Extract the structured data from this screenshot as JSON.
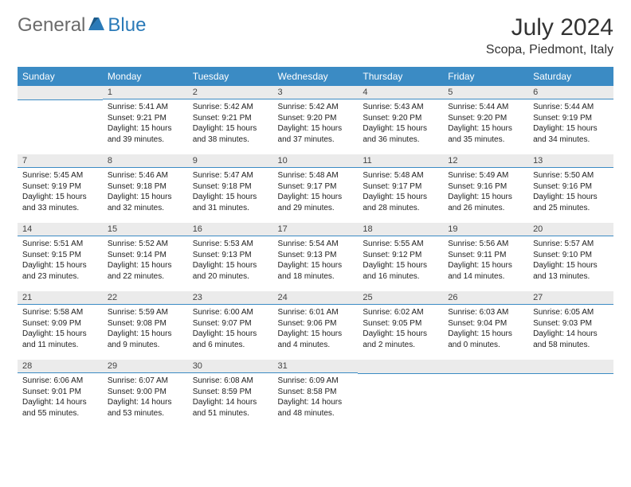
{
  "logo": {
    "text_general": "General",
    "text_blue": "Blue"
  },
  "title": "July 2024",
  "location": "Scopa, Piedmont, Italy",
  "colors": {
    "header_bg": "#3b8bc4",
    "header_text": "#ffffff",
    "day_header_bg": "#ebebeb",
    "day_border": "#3b8bc4",
    "logo_blue": "#2a7ab8",
    "logo_gray": "#6b6b6b"
  },
  "day_names": [
    "Sunday",
    "Monday",
    "Tuesday",
    "Wednesday",
    "Thursday",
    "Friday",
    "Saturday"
  ],
  "weeks": [
    [
      {
        "day": "",
        "sunrise": "",
        "sunset": "",
        "daylight": ""
      },
      {
        "day": "1",
        "sunrise": "Sunrise: 5:41 AM",
        "sunset": "Sunset: 9:21 PM",
        "daylight": "Daylight: 15 hours and 39 minutes."
      },
      {
        "day": "2",
        "sunrise": "Sunrise: 5:42 AM",
        "sunset": "Sunset: 9:21 PM",
        "daylight": "Daylight: 15 hours and 38 minutes."
      },
      {
        "day": "3",
        "sunrise": "Sunrise: 5:42 AM",
        "sunset": "Sunset: 9:20 PM",
        "daylight": "Daylight: 15 hours and 37 minutes."
      },
      {
        "day": "4",
        "sunrise": "Sunrise: 5:43 AM",
        "sunset": "Sunset: 9:20 PM",
        "daylight": "Daylight: 15 hours and 36 minutes."
      },
      {
        "day": "5",
        "sunrise": "Sunrise: 5:44 AM",
        "sunset": "Sunset: 9:20 PM",
        "daylight": "Daylight: 15 hours and 35 minutes."
      },
      {
        "day": "6",
        "sunrise": "Sunrise: 5:44 AM",
        "sunset": "Sunset: 9:19 PM",
        "daylight": "Daylight: 15 hours and 34 minutes."
      }
    ],
    [
      {
        "day": "7",
        "sunrise": "Sunrise: 5:45 AM",
        "sunset": "Sunset: 9:19 PM",
        "daylight": "Daylight: 15 hours and 33 minutes."
      },
      {
        "day": "8",
        "sunrise": "Sunrise: 5:46 AM",
        "sunset": "Sunset: 9:18 PM",
        "daylight": "Daylight: 15 hours and 32 minutes."
      },
      {
        "day": "9",
        "sunrise": "Sunrise: 5:47 AM",
        "sunset": "Sunset: 9:18 PM",
        "daylight": "Daylight: 15 hours and 31 minutes."
      },
      {
        "day": "10",
        "sunrise": "Sunrise: 5:48 AM",
        "sunset": "Sunset: 9:17 PM",
        "daylight": "Daylight: 15 hours and 29 minutes."
      },
      {
        "day": "11",
        "sunrise": "Sunrise: 5:48 AM",
        "sunset": "Sunset: 9:17 PM",
        "daylight": "Daylight: 15 hours and 28 minutes."
      },
      {
        "day": "12",
        "sunrise": "Sunrise: 5:49 AM",
        "sunset": "Sunset: 9:16 PM",
        "daylight": "Daylight: 15 hours and 26 minutes."
      },
      {
        "day": "13",
        "sunrise": "Sunrise: 5:50 AM",
        "sunset": "Sunset: 9:16 PM",
        "daylight": "Daylight: 15 hours and 25 minutes."
      }
    ],
    [
      {
        "day": "14",
        "sunrise": "Sunrise: 5:51 AM",
        "sunset": "Sunset: 9:15 PM",
        "daylight": "Daylight: 15 hours and 23 minutes."
      },
      {
        "day": "15",
        "sunrise": "Sunrise: 5:52 AM",
        "sunset": "Sunset: 9:14 PM",
        "daylight": "Daylight: 15 hours and 22 minutes."
      },
      {
        "day": "16",
        "sunrise": "Sunrise: 5:53 AM",
        "sunset": "Sunset: 9:13 PM",
        "daylight": "Daylight: 15 hours and 20 minutes."
      },
      {
        "day": "17",
        "sunrise": "Sunrise: 5:54 AM",
        "sunset": "Sunset: 9:13 PM",
        "daylight": "Daylight: 15 hours and 18 minutes."
      },
      {
        "day": "18",
        "sunrise": "Sunrise: 5:55 AM",
        "sunset": "Sunset: 9:12 PM",
        "daylight": "Daylight: 15 hours and 16 minutes."
      },
      {
        "day": "19",
        "sunrise": "Sunrise: 5:56 AM",
        "sunset": "Sunset: 9:11 PM",
        "daylight": "Daylight: 15 hours and 14 minutes."
      },
      {
        "day": "20",
        "sunrise": "Sunrise: 5:57 AM",
        "sunset": "Sunset: 9:10 PM",
        "daylight": "Daylight: 15 hours and 13 minutes."
      }
    ],
    [
      {
        "day": "21",
        "sunrise": "Sunrise: 5:58 AM",
        "sunset": "Sunset: 9:09 PM",
        "daylight": "Daylight: 15 hours and 11 minutes."
      },
      {
        "day": "22",
        "sunrise": "Sunrise: 5:59 AM",
        "sunset": "Sunset: 9:08 PM",
        "daylight": "Daylight: 15 hours and 9 minutes."
      },
      {
        "day": "23",
        "sunrise": "Sunrise: 6:00 AM",
        "sunset": "Sunset: 9:07 PM",
        "daylight": "Daylight: 15 hours and 6 minutes."
      },
      {
        "day": "24",
        "sunrise": "Sunrise: 6:01 AM",
        "sunset": "Sunset: 9:06 PM",
        "daylight": "Daylight: 15 hours and 4 minutes."
      },
      {
        "day": "25",
        "sunrise": "Sunrise: 6:02 AM",
        "sunset": "Sunset: 9:05 PM",
        "daylight": "Daylight: 15 hours and 2 minutes."
      },
      {
        "day": "26",
        "sunrise": "Sunrise: 6:03 AM",
        "sunset": "Sunset: 9:04 PM",
        "daylight": "Daylight: 15 hours and 0 minutes."
      },
      {
        "day": "27",
        "sunrise": "Sunrise: 6:05 AM",
        "sunset": "Sunset: 9:03 PM",
        "daylight": "Daylight: 14 hours and 58 minutes."
      }
    ],
    [
      {
        "day": "28",
        "sunrise": "Sunrise: 6:06 AM",
        "sunset": "Sunset: 9:01 PM",
        "daylight": "Daylight: 14 hours and 55 minutes."
      },
      {
        "day": "29",
        "sunrise": "Sunrise: 6:07 AM",
        "sunset": "Sunset: 9:00 PM",
        "daylight": "Daylight: 14 hours and 53 minutes."
      },
      {
        "day": "30",
        "sunrise": "Sunrise: 6:08 AM",
        "sunset": "Sunset: 8:59 PM",
        "daylight": "Daylight: 14 hours and 51 minutes."
      },
      {
        "day": "31",
        "sunrise": "Sunrise: 6:09 AM",
        "sunset": "Sunset: 8:58 PM",
        "daylight": "Daylight: 14 hours and 48 minutes."
      },
      {
        "day": "",
        "sunrise": "",
        "sunset": "",
        "daylight": ""
      },
      {
        "day": "",
        "sunrise": "",
        "sunset": "",
        "daylight": ""
      },
      {
        "day": "",
        "sunrise": "",
        "sunset": "",
        "daylight": ""
      }
    ]
  ]
}
